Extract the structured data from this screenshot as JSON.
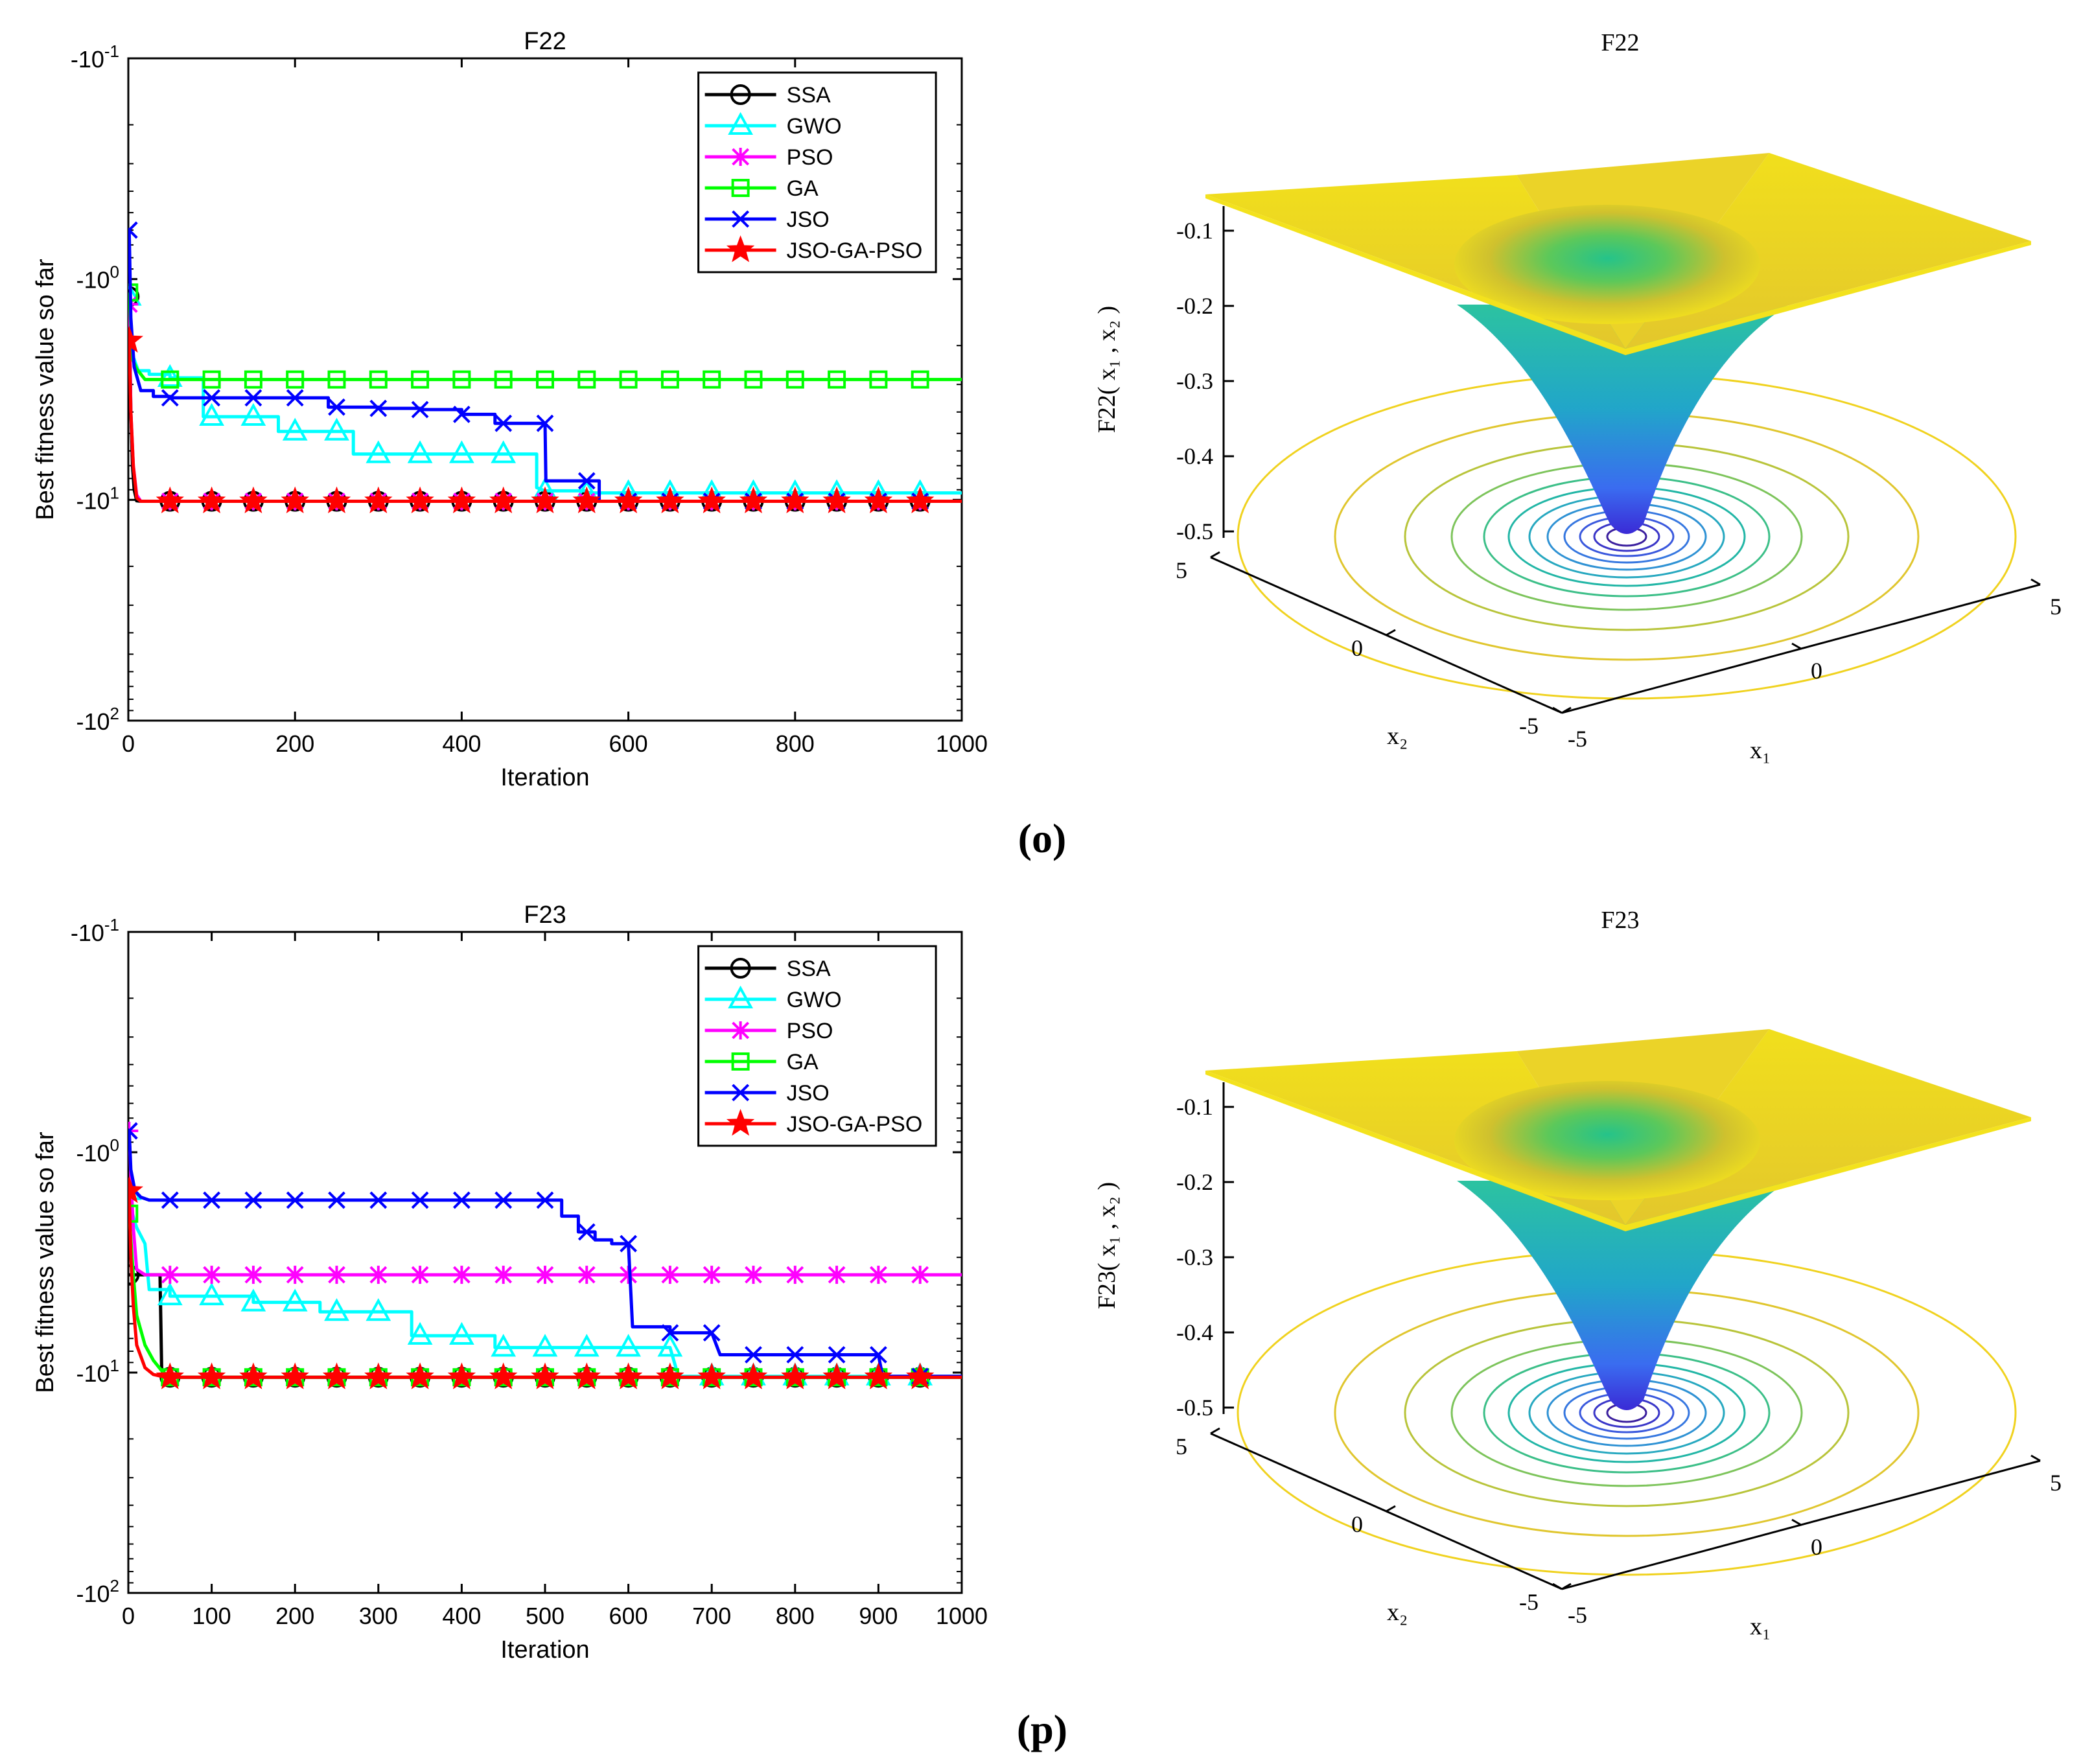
{
  "figure_labels": [
    "(o)",
    "(p)"
  ],
  "colors": {
    "SSA": "#000000",
    "GWO": "#00ffff",
    "PSO": "#ff00ff",
    "GA": "#00ff00",
    "JSO": "#0000ff",
    "JSO-GA-PSO": "#ff0000"
  },
  "markers": {
    "SSA": "circle",
    "GWO": "triangle",
    "PSO": "asterisk",
    "GA": "square",
    "JSO": "x",
    "JSO-GA-PSO": "star"
  },
  "chart_data": [
    {
      "type": "line",
      "title": "F22",
      "xlabel": "Iteration",
      "ylabel": "Best fitness value so far",
      "y_scale": "log (negative values)",
      "xlim": [
        0,
        1000
      ],
      "ylim": [
        -100,
        -0.1
      ],
      "xticks": [
        "0",
        "200",
        "400",
        "600",
        "800",
        "1000"
      ],
      "yticks": [
        {
          "base": "-10",
          "exp": "-1"
        },
        {
          "base": "-10",
          "exp": "0"
        },
        {
          "base": "-10",
          "exp": "1"
        },
        {
          "base": "-10",
          "exp": "2"
        }
      ],
      "legend_position": "top-right",
      "marker_every": 50,
      "series": [
        {
          "name": "SSA",
          "x": [
            1,
            3,
            5,
            7,
            10,
            15,
            1000
          ],
          "values": [
            -1.2,
            -4,
            -7,
            -9,
            -10.1,
            -10.15,
            -10.15
          ]
        },
        {
          "name": "GWO",
          "x": [
            1,
            5,
            12,
            25,
            50,
            90,
            100,
            150,
            180,
            200,
            250,
            270,
            300,
            450,
            470,
            490,
            500,
            550,
            1000
          ],
          "values": [
            -1.2,
            -2.2,
            -2.6,
            -2.7,
            -2.8,
            -4.2,
            -4.2,
            -4.2,
            -4.9,
            -4.9,
            -4.9,
            -6.2,
            -6.2,
            -6.2,
            -6.2,
            -8.8,
            -9.1,
            -9.3,
            -9.3
          ]
        },
        {
          "name": "PSO",
          "x": [
            1,
            3,
            6,
            10,
            15,
            1000
          ],
          "values": [
            -1.3,
            -4,
            -7,
            -9.5,
            -10.15,
            -10.15
          ]
        },
        {
          "name": "GA",
          "x": [
            1,
            5,
            10,
            20,
            50,
            1000
          ],
          "values": [
            -1.15,
            -2.3,
            -2.55,
            -2.85,
            -2.85,
            -2.85
          ]
        },
        {
          "name": "JSO",
          "x": [
            1,
            3,
            7,
            15,
            30,
            50,
            100,
            150,
            200,
            240,
            250,
            300,
            350,
            400,
            440,
            450,
            500,
            501,
            550,
            565,
            580,
            600,
            1000
          ],
          "values": [
            -0.6,
            -1.5,
            -2.5,
            -3.2,
            -3.4,
            -3.45,
            -3.45,
            -3.45,
            -3.45,
            -3.8,
            -3.8,
            -3.85,
            -3.9,
            -4.1,
            -4.5,
            -4.5,
            -4.5,
            -8.2,
            -8.2,
            -10.15,
            -10.15,
            -10.15,
            -10.15
          ]
        },
        {
          "name": "JSO-GA-PSO",
          "x": [
            1,
            3,
            6,
            10,
            15,
            1000
          ],
          "values": [
            -1.9,
            -4,
            -7,
            -9.8,
            -10.15,
            -10.15
          ]
        }
      ]
    },
    {
      "type": "surface",
      "title": "F22",
      "zlabel": "F22( x₁ , x₂ )",
      "xlabel": "x₁",
      "ylabel": "x₂",
      "xlim": [
        -5,
        5
      ],
      "ylim": [
        -5,
        5
      ],
      "zticks": [
        "-0.1",
        "-0.2",
        "-0.3",
        "-0.4",
        "-0.5"
      ],
      "xticks": [
        "-5",
        "0",
        "5"
      ],
      "yticks": [
        "-5",
        "0",
        "5"
      ]
    },
    {
      "type": "line",
      "title": "F23",
      "xlabel": "Iteration",
      "ylabel": "Best fitness value so far",
      "y_scale": "log (negative values)",
      "xlim": [
        0,
        1000
      ],
      "ylim": [
        -100,
        -0.1
      ],
      "xticks": [
        "0",
        "100",
        "200",
        "300",
        "400",
        "500",
        "600",
        "700",
        "800",
        "900",
        "1000"
      ],
      "yticks": [
        {
          "base": "-10",
          "exp": "-1"
        },
        {
          "base": "-10",
          "exp": "0"
        },
        {
          "base": "-10",
          "exp": "1"
        },
        {
          "base": "-10",
          "exp": "2"
        }
      ],
      "legend_position": "top-right",
      "marker_every": 50,
      "series": [
        {
          "name": "SSA",
          "x": [
            1,
            38,
            40,
            42,
            50,
            1000
          ],
          "values": [
            -3.6,
            -3.6,
            -9.5,
            -10.4,
            -10.5,
            -10.5
          ]
        },
        {
          "name": "GWO",
          "x": [
            1,
            5,
            10,
            20,
            25,
            50,
            100,
            150,
            200,
            230,
            250,
            300,
            340,
            350,
            400,
            440,
            450,
            500,
            650,
            660,
            1000
          ],
          "values": [
            -1.5,
            -1.9,
            -2.2,
            -2.6,
            -4.2,
            -4.5,
            -4.5,
            -4.8,
            -4.8,
            -5.3,
            -5.3,
            -5.3,
            -6.8,
            -6.8,
            -6.8,
            -7.7,
            -7.7,
            -7.7,
            -7.7,
            -10.4,
            -10.4
          ]
        },
        {
          "name": "PSO",
          "x": [
            1,
            3,
            6,
            10,
            20,
            1000
          ],
          "values": [
            -0.8,
            -1.3,
            -2.2,
            -3.4,
            -3.6,
            -3.6
          ]
        },
        {
          "name": "GA",
          "x": [
            1,
            3,
            6,
            10,
            20,
            30,
            40,
            50,
            1000
          ],
          "values": [
            -1.9,
            -2.5,
            -3.6,
            -5.5,
            -7.5,
            -8.8,
            -9.8,
            -10.5,
            -10.5
          ]
        },
        {
          "name": "JSO",
          "x": [
            1,
            3,
            8,
            15,
            25,
            50,
            500,
            520,
            540,
            560,
            580,
            600,
            605,
            650,
            700,
            710,
            900,
            905,
            1000
          ],
          "values": [
            -0.8,
            -1.2,
            -1.5,
            -1.6,
            -1.65,
            -1.65,
            -1.65,
            -1.95,
            -2.3,
            -2.5,
            -2.6,
            -2.6,
            -6.2,
            -6.6,
            -6.6,
            -8.3,
            -8.3,
            -10.4,
            -10.4
          ]
        },
        {
          "name": "JSO-GA-PSO",
          "x": [
            1,
            3,
            6,
            10,
            20,
            30,
            40,
            50,
            1000
          ],
          "values": [
            -1.5,
            -3,
            -5,
            -7.5,
            -9.5,
            -10.2,
            -10.4,
            -10.5,
            -10.5
          ]
        }
      ]
    },
    {
      "type": "surface",
      "title": "F23",
      "zlabel": "F23( x₁ , x₂ )",
      "xlabel": "x₁",
      "ylabel": "x₂",
      "xlim": [
        -5,
        5
      ],
      "ylim": [
        -5,
        5
      ],
      "zticks": [
        "-0.1",
        "-0.2",
        "-0.3",
        "-0.4",
        "-0.5"
      ],
      "xticks": [
        "-5",
        "0",
        "5"
      ],
      "yticks": [
        "-5",
        "0",
        "5"
      ]
    }
  ]
}
